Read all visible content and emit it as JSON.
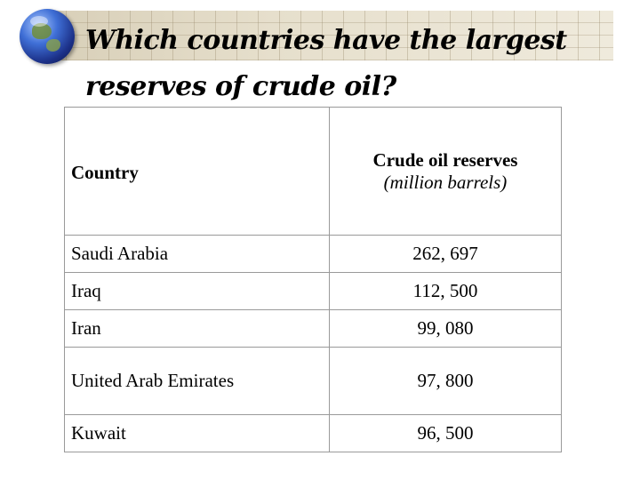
{
  "slide": {
    "title": "Which countries have the largest reserves of crude oil?"
  },
  "table": {
    "headers": {
      "country": "Country",
      "reserves": "Crude oil reserves",
      "reserves_unit": "(million barrels)"
    },
    "rows": [
      {
        "country": "Saudi Arabia",
        "reserves": "262, 697"
      },
      {
        "country": "Iraq",
        "reserves": "112, 500"
      },
      {
        "country": "Iran",
        "reserves": "99, 080"
      },
      {
        "country": "United Arab Emirates",
        "reserves": "97, 800"
      },
      {
        "country": "Kuwait",
        "reserves": "96, 500"
      }
    ]
  }
}
